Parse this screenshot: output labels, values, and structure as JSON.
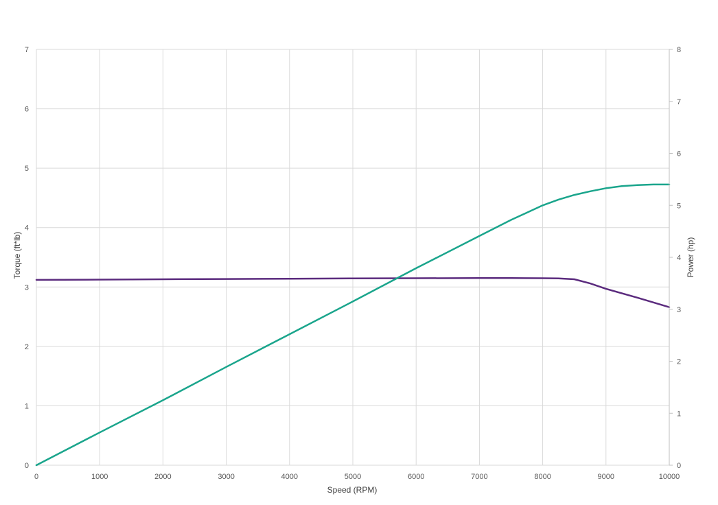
{
  "chart_data": {
    "type": "line",
    "title": "",
    "xlabel": "Speed (RPM)",
    "ylabel": "Torque (ft*lb)",
    "y2label": "Power (hp)",
    "xlim": [
      0,
      10000
    ],
    "ylim": [
      0,
      7
    ],
    "y2lim": [
      0,
      8
    ],
    "x_ticks": [
      0,
      1000,
      2000,
      3000,
      4000,
      5000,
      6000,
      7000,
      8000,
      9000,
      10000
    ],
    "y_ticks": [
      0,
      1,
      2,
      3,
      4,
      5,
      6,
      7
    ],
    "y2_ticks": [
      0,
      1,
      2,
      3,
      4,
      5,
      6,
      7,
      8
    ],
    "grid": true,
    "legend": "none",
    "series": [
      {
        "axis": "left",
        "color": "#5b2b7e",
        "x": [
          0,
          1000,
          2000,
          3000,
          4000,
          5000,
          6000,
          7000,
          7500,
          8000,
          8250,
          8500,
          8750,
          9000,
          9500,
          10000
        ],
        "y": [
          3.12,
          3.125,
          3.13,
          3.135,
          3.14,
          3.145,
          3.148,
          3.15,
          3.15,
          3.148,
          3.145,
          3.13,
          3.06,
          2.97,
          2.82,
          2.66
        ]
      },
      {
        "axis": "right",
        "color": "#1aa58c",
        "x": [
          0,
          1000,
          2000,
          3000,
          4000,
          5000,
          6000,
          7000,
          7500,
          8000,
          8250,
          8500,
          8750,
          9000,
          9250,
          9500,
          9750,
          10000
        ],
        "y": [
          0,
          0.63,
          1.25,
          1.89,
          2.52,
          3.15,
          3.79,
          4.41,
          4.72,
          5.0,
          5.11,
          5.2,
          5.27,
          5.33,
          5.37,
          5.39,
          5.4,
          5.4
        ]
      }
    ]
  }
}
